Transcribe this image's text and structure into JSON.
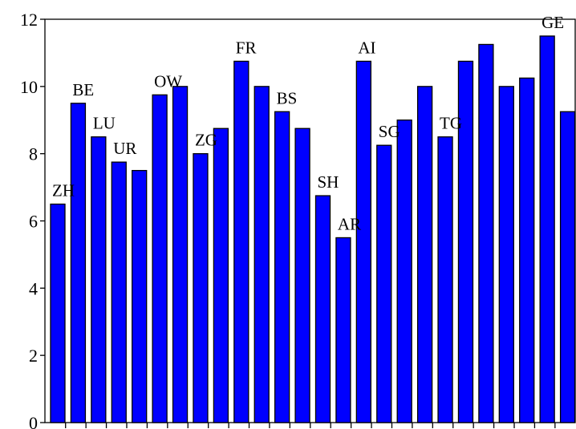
{
  "chart_data": {
    "type": "bar",
    "title": "",
    "xlabel": "",
    "ylabel": "",
    "ylim": [
      0,
      12
    ],
    "yticks": [
      "0",
      "2",
      "4",
      "6",
      "8",
      "10",
      "12"
    ],
    "grid": false,
    "bar_color": "#0000ff",
    "values": [
      6.5,
      9.5,
      8.5,
      7.75,
      7.5,
      9.75,
      10.0,
      8.0,
      8.75,
      10.75,
      10.0,
      9.25,
      8.75,
      6.75,
      5.5,
      10.75,
      8.25,
      9.0,
      10.0,
      8.5,
      10.75,
      11.25,
      10.0,
      10.25,
      11.5,
      9.25
    ],
    "labels": [
      "ZH",
      "BE",
      "LU",
      "UR",
      "",
      "OW",
      "",
      "ZG",
      "",
      "FR",
      "",
      "BS",
      "",
      "SH",
      "AR",
      "AI",
      "SG",
      "",
      "",
      "TG",
      "",
      "",
      "",
      "",
      "GE",
      ""
    ]
  }
}
